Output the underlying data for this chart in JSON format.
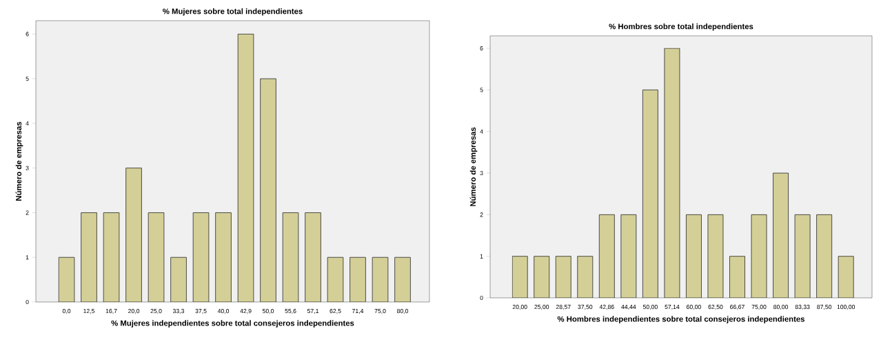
{
  "chart_data": [
    {
      "type": "bar",
      "title": "% Mujeres sobre total independientes",
      "xlabel": "% Mujeres independientes sobre total consejeros independientes",
      "ylabel": "Número de empresas",
      "categories": [
        "0,0",
        "12,5",
        "16,7",
        "20,0",
        "25,0",
        "33,3",
        "37,5",
        "40,0",
        "42,9",
        "50,0",
        "55,6",
        "57,1",
        "62,5",
        "71,4",
        "75,0",
        "80,0"
      ],
      "values": [
        1,
        2,
        2,
        3,
        2,
        1,
        2,
        2,
        6,
        5,
        2,
        2,
        1,
        1,
        1,
        1
      ],
      "color": "#d3cf97",
      "ylim": [
        0,
        6.3
      ],
      "yticks": [
        0,
        1,
        2,
        3,
        4,
        5,
        6
      ]
    },
    {
      "type": "bar",
      "title": "% Hombres sobre total independientes",
      "xlabel": "% Hombres independientes sobre total consejeros independientes",
      "ylabel": "Número de empresas",
      "categories": [
        "20,00",
        "25,00",
        "28,57",
        "37,50",
        "42,86",
        "44,44",
        "50,00",
        "57,14",
        "60,00",
        "62,50",
        "66,67",
        "75,00",
        "80,00",
        "83,33",
        "87,50",
        "100,00"
      ],
      "values": [
        1,
        1,
        1,
        1,
        2,
        2,
        5,
        6,
        2,
        2,
        1,
        2,
        3,
        2,
        2,
        1
      ],
      "color": "#d3cf97",
      "ylim": [
        0,
        6.3
      ],
      "yticks": [
        0,
        1,
        2,
        3,
        4,
        5,
        6
      ]
    }
  ]
}
